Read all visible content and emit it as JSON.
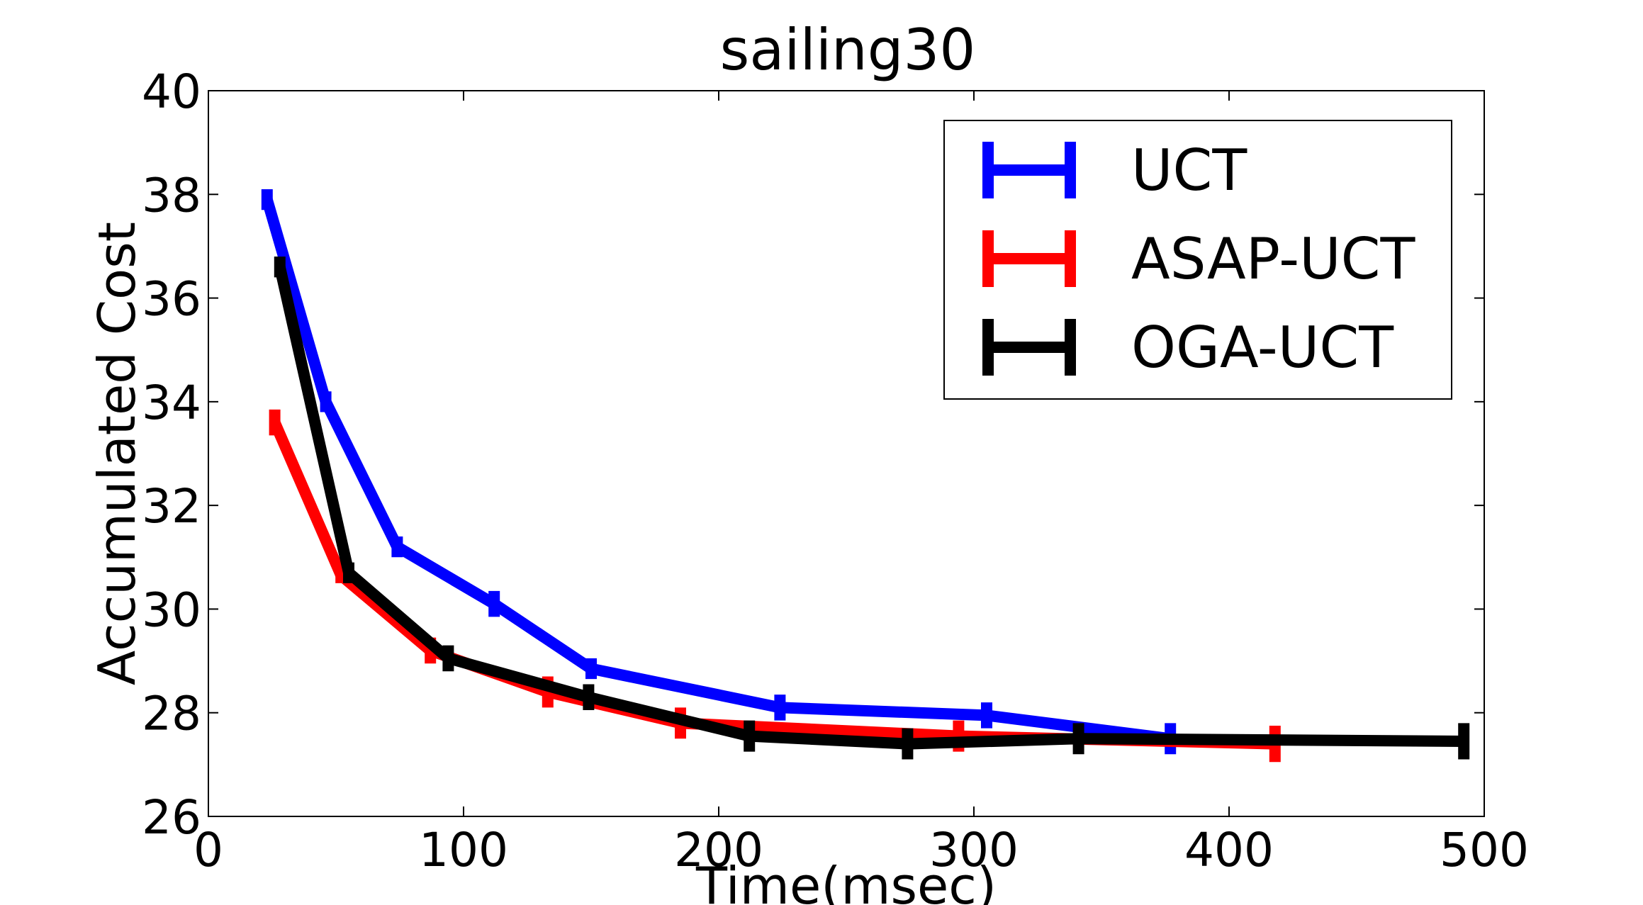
{
  "chart_data": {
    "type": "line",
    "title": "sailing30",
    "xlabel": "Time(msec)",
    "ylabel": "Accumulated Cost",
    "xlim": [
      0,
      500
    ],
    "ylim": [
      26,
      40
    ],
    "xticks": [
      0,
      100,
      200,
      300,
      400,
      500
    ],
    "yticks": [
      26,
      28,
      30,
      32,
      34,
      36,
      38,
      40
    ],
    "grid": false,
    "legend_position": "top-right",
    "series": [
      {
        "name": "UCT",
        "color": "#0000ff",
        "points": [
          {
            "x": 23,
            "y": 37.9,
            "err": 0.2
          },
          {
            "x": 46,
            "y": 34.0,
            "err": 0.2
          },
          {
            "x": 74,
            "y": 31.2,
            "err": 0.2
          },
          {
            "x": 112,
            "y": 30.1,
            "err": 0.25
          },
          {
            "x": 150,
            "y": 28.85,
            "err": 0.2
          },
          {
            "x": 224,
            "y": 28.1,
            "err": 0.25
          },
          {
            "x": 305,
            "y": 27.95,
            "err": 0.25
          },
          {
            "x": 377,
            "y": 27.5,
            "err": 0.3
          }
        ]
      },
      {
        "name": "ASAP-UCT",
        "color": "#ff0000",
        "points": [
          {
            "x": 26,
            "y": 33.6,
            "err": 0.25
          },
          {
            "x": 52,
            "y": 30.65,
            "err": 0.15
          },
          {
            "x": 87,
            "y": 29.2,
            "err": 0.25
          },
          {
            "x": 133,
            "y": 28.4,
            "err": 0.3
          },
          {
            "x": 185,
            "y": 27.8,
            "err": 0.3
          },
          {
            "x": 294,
            "y": 27.55,
            "err": 0.3
          },
          {
            "x": 418,
            "y": 27.4,
            "err": 0.35
          }
        ]
      },
      {
        "name": "OGA-UCT",
        "color": "#000000",
        "points": [
          {
            "x": 28,
            "y": 36.6,
            "err": 0.2
          },
          {
            "x": 55,
            "y": 30.7,
            "err": 0.2
          },
          {
            "x": 94,
            "y": 29.05,
            "err": 0.25
          },
          {
            "x": 149,
            "y": 28.3,
            "err": 0.25
          },
          {
            "x": 212,
            "y": 27.55,
            "err": 0.3
          },
          {
            "x": 274,
            "y": 27.4,
            "err": 0.3
          },
          {
            "x": 341,
            "y": 27.5,
            "err": 0.3
          },
          {
            "x": 492,
            "y": 27.45,
            "err": 0.35
          }
        ]
      }
    ]
  }
}
